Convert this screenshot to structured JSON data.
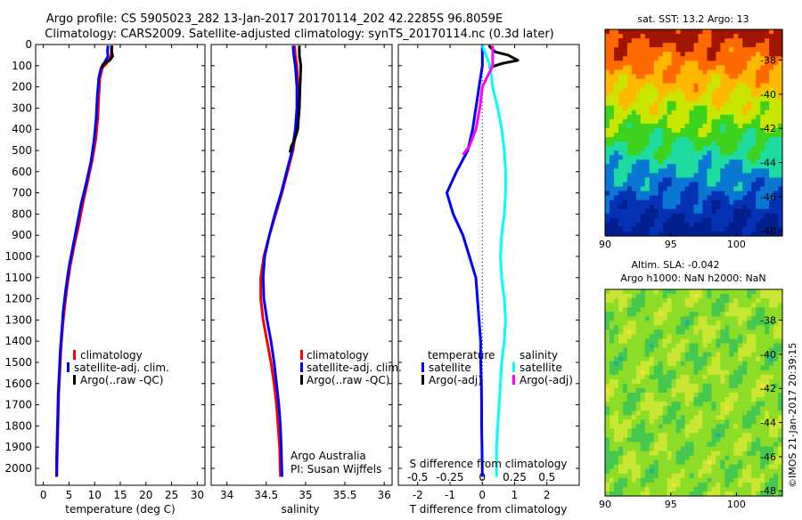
{
  "header": {
    "line1": "Argo profile: CS 5905023_282 13-Jan-2017 20170114_202 42.2285S 96.8059E",
    "line2": "Climatology: CARS2009. Satellite-adjusted climatology: synTS_20170114.nc (0.3d later)"
  },
  "footer": {
    "credit": "©IMOS 21-Jan-2017 20:39:15",
    "owner": "Argo Australia",
    "pi": "PI: Susan Wijffels"
  },
  "colors": {
    "climatology": "#ff0000",
    "satellite": "#0000ff",
    "argo": "#000000",
    "sal_satellite": "#00ffff",
    "sal_argo": "#ff00ff"
  },
  "chart_data": [
    {
      "type": "line",
      "id": "temperature",
      "xlabel": "temperature (deg C)",
      "ylabel": "",
      "xlim": [
        -1.5,
        31.5
      ],
      "ylim": [
        2080,
        0
      ],
      "xticks": [
        0,
        5,
        10,
        15,
        20,
        25,
        30
      ],
      "xtick_labels": [
        "0",
        "5",
        "10",
        "15",
        "20",
        "25",
        "30"
      ],
      "yticks": [
        0,
        100,
        200,
        300,
        400,
        500,
        600,
        700,
        800,
        900,
        1000,
        1100,
        1200,
        1300,
        1400,
        1500,
        1600,
        1700,
        1800,
        1900,
        2000
      ],
      "ytick_labels": [
        "0",
        "100",
        "200",
        "300",
        "400",
        "500",
        "600",
        "700",
        "800",
        "900",
        "1000",
        "1100",
        "1200",
        "1300",
        "1400",
        "1500",
        "1600",
        "1700",
        "1800",
        "1900",
        "2000"
      ],
      "legend": [
        "climatology",
        "satellite-adj. clim.",
        "Argo(..raw -QC)"
      ],
      "series": [
        {
          "name": "climatology",
          "color": "#ff0000",
          "points": [
            [
              13.4,
              5
            ],
            [
              13.3,
              30
            ],
            [
              13.2,
              55
            ],
            [
              12.3,
              90
            ],
            [
              11.5,
              110
            ],
            [
              11.0,
              160
            ],
            [
              10.8,
              250
            ],
            [
              10.6,
              350
            ],
            [
              10.2,
              450
            ],
            [
              9.5,
              550
            ],
            [
              8.6,
              650
            ],
            [
              7.7,
              750
            ],
            [
              6.9,
              850
            ],
            [
              6.0,
              950
            ],
            [
              5.2,
              1050
            ],
            [
              4.6,
              1150
            ],
            [
              4.1,
              1250
            ],
            [
              3.7,
              1350
            ],
            [
              3.4,
              1450
            ],
            [
              3.2,
              1550
            ],
            [
              3.0,
              1650
            ],
            [
              2.9,
              1750
            ],
            [
              2.8,
              1850
            ],
            [
              2.7,
              1950
            ],
            [
              2.6,
              2040
            ]
          ]
        },
        {
          "name": "satellite-adj. clim.",
          "color": "#0000ff",
          "points": [
            [
              12.6,
              5
            ],
            [
              12.5,
              30
            ],
            [
              12.6,
              55
            ],
            [
              11.8,
              90
            ],
            [
              11.2,
              115
            ],
            [
              10.8,
              160
            ],
            [
              10.5,
              250
            ],
            [
              10.3,
              350
            ],
            [
              9.9,
              450
            ],
            [
              9.3,
              550
            ],
            [
              8.4,
              650
            ],
            [
              7.4,
              750
            ],
            [
              6.6,
              850
            ],
            [
              5.8,
              950
            ],
            [
              5.0,
              1050
            ],
            [
              4.4,
              1150
            ],
            [
              3.9,
              1250
            ],
            [
              3.6,
              1350
            ],
            [
              3.3,
              1450
            ],
            [
              3.1,
              1550
            ],
            [
              2.9,
              1650
            ],
            [
              2.8,
              1750
            ],
            [
              2.7,
              1850
            ],
            [
              2.6,
              1950
            ],
            [
              2.6,
              2040
            ]
          ]
        },
        {
          "name": "Argo(..raw -QC)",
          "color": "#000000",
          "points": [
            [
              13.3,
              5
            ],
            [
              13.3,
              30
            ],
            [
              13.5,
              55
            ],
            [
              12.9,
              75
            ],
            [
              11.6,
              95
            ],
            [
              11.3,
              110
            ]
          ]
        }
      ]
    },
    {
      "type": "line",
      "id": "salinity",
      "xlabel": "salinity",
      "ylabel": "",
      "xlim": [
        33.8,
        36.1
      ],
      "ylim": [
        2080,
        0
      ],
      "xticks": [
        34,
        34.5,
        35,
        35.5,
        36
      ],
      "xtick_labels": [
        "34",
        "34.5",
        "35",
        "35.5",
        "36"
      ],
      "legend": [
        "climatology",
        "satellite-adj. clim.",
        "Argo(..raw -QC)"
      ],
      "series": [
        {
          "name": "climatology",
          "color": "#ff0000",
          "points": [
            [
              34.86,
              5
            ],
            [
              34.87,
              50
            ],
            [
              34.89,
              100
            ],
            [
              34.9,
              200
            ],
            [
              34.9,
              300
            ],
            [
              34.88,
              400
            ],
            [
              34.84,
              500
            ],
            [
              34.77,
              600
            ],
            [
              34.7,
              700
            ],
            [
              34.62,
              800
            ],
            [
              34.54,
              900
            ],
            [
              34.47,
              1000
            ],
            [
              34.43,
              1100
            ],
            [
              34.43,
              1200
            ],
            [
              34.46,
              1300
            ],
            [
              34.51,
              1400
            ],
            [
              34.56,
              1500
            ],
            [
              34.6,
              1600
            ],
            [
              34.63,
              1700
            ],
            [
              34.65,
              1800
            ],
            [
              34.67,
              1900
            ],
            [
              34.68,
              2040
            ]
          ]
        },
        {
          "name": "satellite-adj. clim.",
          "color": "#0000ff",
          "points": [
            [
              34.84,
              5
            ],
            [
              34.85,
              50
            ],
            [
              34.87,
              100
            ],
            [
              34.89,
              200
            ],
            [
              34.89,
              300
            ],
            [
              34.87,
              400
            ],
            [
              34.83,
              500
            ],
            [
              34.76,
              600
            ],
            [
              34.69,
              700
            ],
            [
              34.61,
              800
            ],
            [
              34.54,
              900
            ],
            [
              34.48,
              1000
            ],
            [
              34.46,
              1100
            ],
            [
              34.47,
              1200
            ],
            [
              34.51,
              1300
            ],
            [
              34.56,
              1400
            ],
            [
              34.6,
              1500
            ],
            [
              34.63,
              1600
            ],
            [
              34.66,
              1700
            ],
            [
              34.68,
              1800
            ],
            [
              34.69,
              1900
            ],
            [
              34.7,
              2040
            ]
          ]
        },
        {
          "name": "Argo(..raw -QC)",
          "color": "#000000",
          "points": [
            [
              34.92,
              5
            ],
            [
              34.92,
              50
            ],
            [
              34.94,
              100
            ],
            [
              34.93,
              200
            ],
            [
              34.92,
              300
            ],
            [
              34.9,
              400
            ],
            [
              34.86,
              450
            ],
            [
              34.82,
              480
            ],
            [
              34.8,
              510
            ]
          ]
        }
      ]
    },
    {
      "type": "line",
      "id": "difference",
      "xlabel": "T difference from climatology",
      "xlabel_top": "S difference from climatology",
      "xlim": [
        -2.6,
        3.0
      ],
      "ylim": [
        2080,
        0
      ],
      "xticks": [
        -2,
        -1,
        0,
        1,
        2
      ],
      "xtick_labels": [
        "-2",
        "-1",
        "0",
        "1",
        "2"
      ],
      "sticks": [
        -0.5,
        -0.25,
        0,
        0.25,
        0.5
      ],
      "stick_labels": [
        "-0.5",
        "-0.25",
        "0",
        "0.25",
        "0.5"
      ],
      "legend_groups": [
        {
          "title": "temperature",
          "entries": [
            "satellite",
            "Argo(-adj)"
          ]
        },
        {
          "title": "salinity",
          "entries": [
            "satellite",
            "Argo(-adj)"
          ]
        }
      ],
      "series": [
        {
          "name": "temperature satellite",
          "color": "#0000ff",
          "points": [
            [
              0.0,
              5
            ],
            [
              0.0,
              100
            ],
            [
              -0.1,
              200
            ],
            [
              -0.2,
              300
            ],
            [
              -0.3,
              400
            ],
            [
              -0.45,
              500
            ],
            [
              -0.8,
              600
            ],
            [
              -1.1,
              700
            ],
            [
              -0.9,
              800
            ],
            [
              -0.6,
              900
            ],
            [
              -0.4,
              1000
            ],
            [
              -0.2,
              1100
            ],
            [
              -0.15,
              1200
            ],
            [
              -0.1,
              1300
            ],
            [
              -0.05,
              1400
            ],
            [
              -0.05,
              1500
            ],
            [
              -0.03,
              1600
            ],
            [
              -0.02,
              1700
            ],
            [
              -0.02,
              1800
            ],
            [
              -0.01,
              1900
            ],
            [
              0.0,
              2040
            ]
          ]
        },
        {
          "name": "temperature Argo(-adj)",
          "color": "#000000",
          "points": [
            [
              0.2,
              5
            ],
            [
              0.4,
              35
            ],
            [
              0.8,
              50
            ],
            [
              1.1,
              75
            ],
            [
              0.6,
              90
            ],
            [
              0.2,
              110
            ]
          ]
        },
        {
          "name": "salinity satellite",
          "color": "#00ffff",
          "points": [
            [
              0.0,
              5
            ],
            [
              0.06,
              100
            ],
            [
              0.08,
              200
            ],
            [
              0.12,
              300
            ],
            [
              0.15,
              400
            ],
            [
              0.17,
              500
            ],
            [
              0.18,
              600
            ],
            [
              0.18,
              700
            ],
            [
              0.17,
              800
            ],
            [
              0.15,
              900
            ],
            [
              0.14,
              1000
            ],
            [
              0.15,
              1100
            ],
            [
              0.17,
              1200
            ],
            [
              0.18,
              1300
            ],
            [
              0.17,
              1400
            ],
            [
              0.15,
              1500
            ],
            [
              0.14,
              1600
            ],
            [
              0.13,
              1700
            ],
            [
              0.12,
              1800
            ],
            [
              0.11,
              1900
            ],
            [
              0.11,
              2040
            ]
          ]
        },
        {
          "name": "salinity Argo(-adj)",
          "color": "#ff00ff",
          "points": [
            [
              0.08,
              5
            ],
            [
              0.08,
              100
            ],
            [
              0.0,
              200
            ],
            [
              -0.02,
              300
            ],
            [
              -0.05,
              400
            ],
            [
              -0.1,
              480
            ],
            [
              -0.15,
              520
            ]
          ]
        }
      ]
    },
    {
      "type": "heatmap",
      "id": "sst-map",
      "title": "sat. SST: 13.2  Argo: 13",
      "xticks": [
        90,
        95,
        100
      ],
      "xtick_labels": [
        "90",
        "95",
        "100"
      ],
      "yticks": [
        -38,
        -40,
        -42,
        -44,
        -46,
        -48
      ],
      "ytick_labels": [
        "-38",
        "-40",
        "-42",
        "-44",
        "-46",
        "-48"
      ],
      "xlim": [
        90,
        103.5
      ],
      "ylim": [
        -48.3,
        -36.2
      ],
      "color_bands": [
        "#a01500",
        "#ff6a00",
        "#ffb800",
        "#c8e600",
        "#3cd21e",
        "#1edca0",
        "#0a78d2",
        "#0532b4",
        "#001e8c"
      ]
    },
    {
      "type": "heatmap",
      "id": "sla-map",
      "title_line1": "Altim. SLA: -0.042",
      "title_line2": "Argo h1000: NaN h2000: NaN",
      "xticks": [
        90,
        95,
        100
      ],
      "xtick_labels": [
        "90",
        "95",
        "100"
      ],
      "yticks": [
        -38,
        -40,
        -42,
        -44,
        -46,
        -48
      ],
      "ytick_labels": [
        "-38",
        "-40",
        "-42",
        "-44",
        "-46",
        "-48"
      ],
      "xlim": [
        90,
        103.5
      ],
      "ylim": [
        -48.3,
        -36.2
      ],
      "color_bands": [
        "#1eb48c",
        "#46c850",
        "#8cdc28",
        "#c8e632",
        "#f0e632"
      ]
    }
  ]
}
